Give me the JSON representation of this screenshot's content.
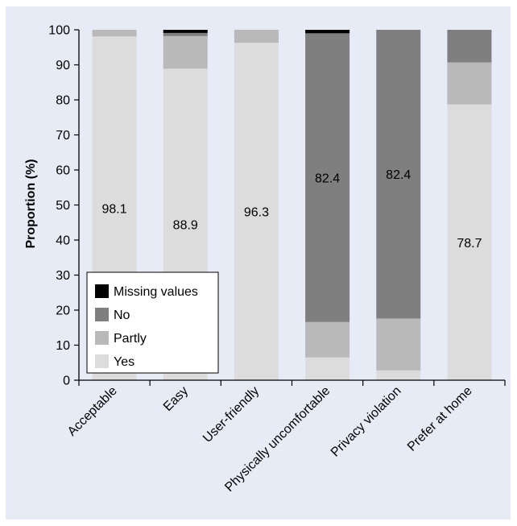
{
  "chart_data": {
    "type": "bar",
    "stacked": true,
    "title": "",
    "xlabel": "",
    "ylabel": "Proportion (%)",
    "ylim": [
      0,
      100
    ],
    "yticks": [
      0,
      10,
      20,
      30,
      40,
      50,
      60,
      70,
      80,
      90,
      100
    ],
    "grid": false,
    "legend_position": "bottom-left",
    "categories": [
      "Acceptable",
      "Easy",
      "User-friendly",
      "Physically uncomfortable",
      "Privacy violation",
      "Prefer at home"
    ],
    "series": [
      {
        "name": "Yes",
        "color": "#dcdcdc",
        "values": [
          98.1,
          88.9,
          96.3,
          6.5,
          2.8,
          78.7
        ]
      },
      {
        "name": "Partly",
        "color": "#b9b9b9",
        "values": [
          1.9,
          9.3,
          3.7,
          10.1,
          14.8,
          12.0
        ]
      },
      {
        "name": "No",
        "color": "#7f7f7f",
        "values": [
          0,
          0.9,
          0,
          82.4,
          82.4,
          9.3
        ]
      },
      {
        "name": "Missing values",
        "color": "#000000",
        "values": [
          0,
          0.9,
          0,
          1.0,
          0,
          0
        ]
      }
    ],
    "data_labels": [
      {
        "category": "Acceptable",
        "series": "Yes",
        "text": "98.1"
      },
      {
        "category": "Easy",
        "series": "Yes",
        "text": "88.9"
      },
      {
        "category": "User-friendly",
        "series": "Yes",
        "text": "96.3"
      },
      {
        "category": "Physically uncomfortable",
        "series": "No",
        "text": "82.4"
      },
      {
        "category": "Privacy violation",
        "series": "No",
        "text": "82.4"
      },
      {
        "category": "Prefer at home",
        "series": "Yes",
        "text": "78.7"
      }
    ],
    "legend_entries": [
      "Missing values",
      "No",
      "Partly",
      "Yes"
    ]
  }
}
